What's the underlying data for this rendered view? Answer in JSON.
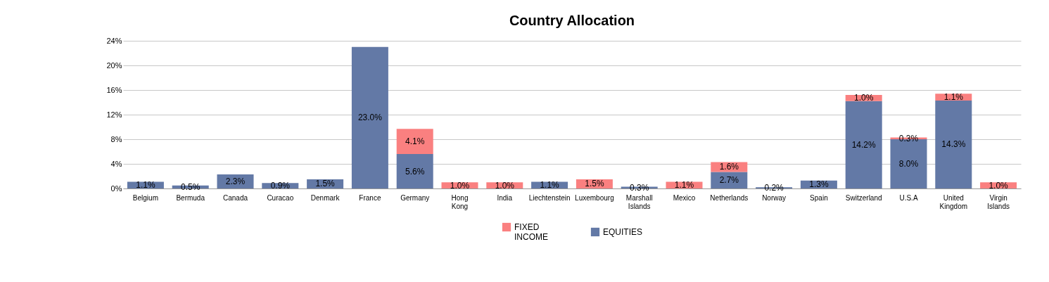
{
  "chart_data": {
    "type": "bar",
    "title": "Country Allocation",
    "stacked": true,
    "categories": [
      "Belgium",
      "Bermuda",
      "Canada",
      "Curacao",
      "Denmark",
      "France",
      "Germany",
      "Hong Kong",
      "India",
      "Liechtenstein",
      "Luxembourg",
      "Marshall Islands",
      "Mexico",
      "Netherlands",
      "Norway",
      "Spain",
      "Switzerland",
      "U.S.A",
      "United Kingdom",
      "Virgin Islands"
    ],
    "series": [
      {
        "name": "EQUITIES",
        "color": "#6379a6",
        "values": [
          1.1,
          0.5,
          2.3,
          0.9,
          1.5,
          23.0,
          5.6,
          null,
          null,
          1.1,
          null,
          0.3,
          null,
          2.7,
          0.2,
          1.3,
          14.2,
          8.0,
          14.3,
          null
        ],
        "value_labels": [
          "1.1%",
          "0.5%",
          "2.3%",
          "0.9%",
          "1.5%",
          "23.0%",
          "5.6%",
          null,
          null,
          "1.1%",
          null,
          "0.3%",
          null,
          "2.7%",
          "0.2%",
          "1.3%",
          "14.2%",
          "8.0%",
          "14.3%",
          null
        ]
      },
      {
        "name": "FIXED INCOME",
        "color": "#fa8080",
        "values": [
          null,
          null,
          null,
          null,
          null,
          null,
          4.1,
          1.0,
          1.0,
          null,
          1.5,
          null,
          1.1,
          1.6,
          null,
          null,
          1.0,
          0.3,
          1.1,
          1.0
        ],
        "value_labels": [
          null,
          null,
          null,
          null,
          null,
          null,
          "4.1%",
          "1.0%",
          "1.0%",
          null,
          "1.5%",
          null,
          "1.1%",
          "1.6%",
          null,
          null,
          "1.0%",
          "0.3%",
          "1.1%",
          "1.0%"
        ]
      }
    ],
    "ylim": [
      0,
      24
    ],
    "yticks": [
      {
        "value": 0,
        "label": "0%"
      },
      {
        "value": 4,
        "label": "4%"
      },
      {
        "value": 8,
        "label": "8%"
      },
      {
        "value": 12,
        "label": "12%"
      },
      {
        "value": 16,
        "label": "16%"
      },
      {
        "value": 20,
        "label": "20%"
      },
      {
        "value": 24,
        "label": "24%"
      }
    ],
    "grid": "y",
    "legend": "bottom"
  }
}
